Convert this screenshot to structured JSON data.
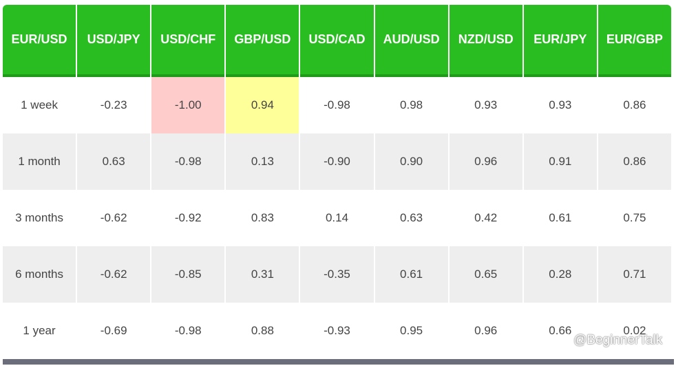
{
  "table": {
    "headers": [
      "EUR/USD",
      "USD/JPY",
      "USD/CHF",
      "GBP/USD",
      "USD/CAD",
      "AUD/USD",
      "NZD/USD",
      "EUR/JPY",
      "EUR/GBP"
    ],
    "rows": [
      {
        "period": "1 week",
        "values": [
          "-0.23",
          "-1.00",
          "0.94",
          "-0.98",
          "0.98",
          "0.93",
          "0.93",
          "0.86"
        ]
      },
      {
        "period": "1 month",
        "values": [
          "0.63",
          "-0.98",
          "0.13",
          "-0.90",
          "0.90",
          "0.96",
          "0.91",
          "0.86"
        ]
      },
      {
        "period": "3 months",
        "values": [
          "-0.62",
          "-0.92",
          "0.83",
          "0.14",
          "0.63",
          "0.42",
          "0.61",
          "0.75"
        ]
      },
      {
        "period": "6 months",
        "values": [
          "-0.62",
          "-0.85",
          "0.31",
          "-0.35",
          "0.61",
          "0.65",
          "0.28",
          "0.71"
        ]
      },
      {
        "period": "1 year",
        "values": [
          "-0.69",
          "-0.98",
          "0.88",
          "-0.93",
          "0.95",
          "0.96",
          "0.66",
          "0.02"
        ]
      }
    ]
  },
  "colors": {
    "header_bg": "#2abd21",
    "header_text": "#ffffff",
    "highlight_negative": "#ffcccc",
    "highlight_positive": "#ffff99",
    "alt_row_bg": "#eeeeee",
    "footer_bar": "#6b6e7a"
  },
  "watermark": {
    "text": "@BeginnerTalk",
    "icon": "weibo-icon"
  }
}
